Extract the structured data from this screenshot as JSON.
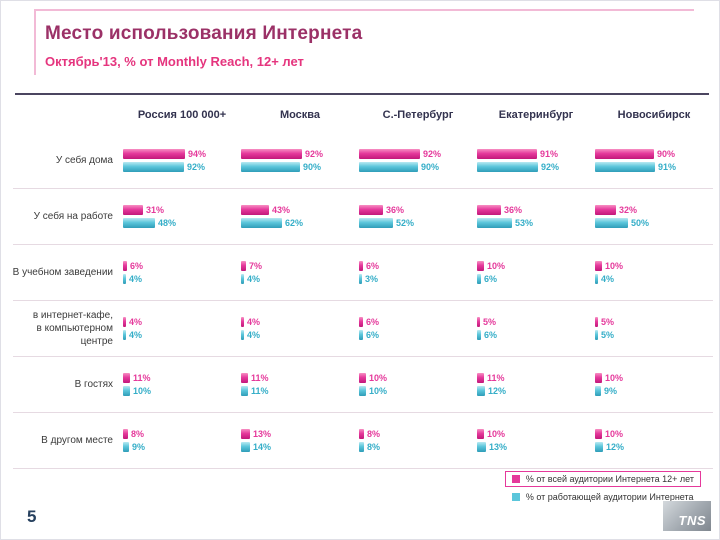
{
  "slide": {
    "title": "Место использования Интернета",
    "subtitle": "Октябрь'13, % от Monthly Reach, 12+ лет",
    "page_number": "5",
    "logo_text": "TNS"
  },
  "legend": {
    "items": [
      {
        "label": "% от всей аудитории Интернета 12+ лет",
        "color": "#e5399b",
        "boxed": true
      },
      {
        "label": "% от работающей аудитории Интернета",
        "color": "#5bc6db",
        "boxed": false
      }
    ]
  },
  "chart_data": {
    "type": "bar",
    "orientation": "horizontal",
    "unit": "%",
    "xlim": [
      0,
      100
    ],
    "grid": false,
    "legend_position": "bottom-right",
    "columns": [
      "Россия 100 000+",
      "Москва",
      "С.-Петербург",
      "Екатеринбург",
      "Новосибирск"
    ],
    "series_names": [
      "% от всей аудитории Интернета 12+ лет",
      "% от работающей аудитории Интернета"
    ],
    "series_colors": [
      "#e5399b",
      "#5bc6db"
    ],
    "rows": [
      {
        "category": "У себя дома",
        "label_lines": [
          "У себя дома"
        ],
        "values": [
          [
            94,
            92
          ],
          [
            92,
            90
          ],
          [
            92,
            90
          ],
          [
            91,
            92
          ],
          [
            90,
            91
          ]
        ]
      },
      {
        "category": "У себя на работе",
        "label_lines": [
          "У себя на работе"
        ],
        "values": [
          [
            31,
            48
          ],
          [
            43,
            62
          ],
          [
            36,
            52
          ],
          [
            36,
            53
          ],
          [
            32,
            50
          ]
        ]
      },
      {
        "category": "В учебном заведении",
        "label_lines": [
          "В учебном заведении"
        ],
        "values": [
          [
            6,
            4
          ],
          [
            7,
            4
          ],
          [
            6,
            3
          ],
          [
            10,
            6
          ],
          [
            10,
            4
          ]
        ]
      },
      {
        "category": "В интернет-кафе, в компьютерном центре",
        "label_lines": [
          "в интернет-кафе,",
          "в компьютерном",
          "центре"
        ],
        "values": [
          [
            4,
            4
          ],
          [
            4,
            4
          ],
          [
            6,
            6
          ],
          [
            5,
            6
          ],
          [
            5,
            5
          ]
        ]
      },
      {
        "category": "В гостях",
        "label_lines": [
          "В гостях"
        ],
        "values": [
          [
            11,
            10
          ],
          [
            11,
            11
          ],
          [
            10,
            10
          ],
          [
            11,
            12
          ],
          [
            10,
            9
          ]
        ]
      },
      {
        "category": "В другом месте",
        "label_lines": [
          "В другом месте"
        ],
        "values": [
          [
            8,
            9
          ],
          [
            13,
            14
          ],
          [
            8,
            8
          ],
          [
            10,
            13
          ],
          [
            10,
            12
          ]
        ]
      }
    ]
  }
}
